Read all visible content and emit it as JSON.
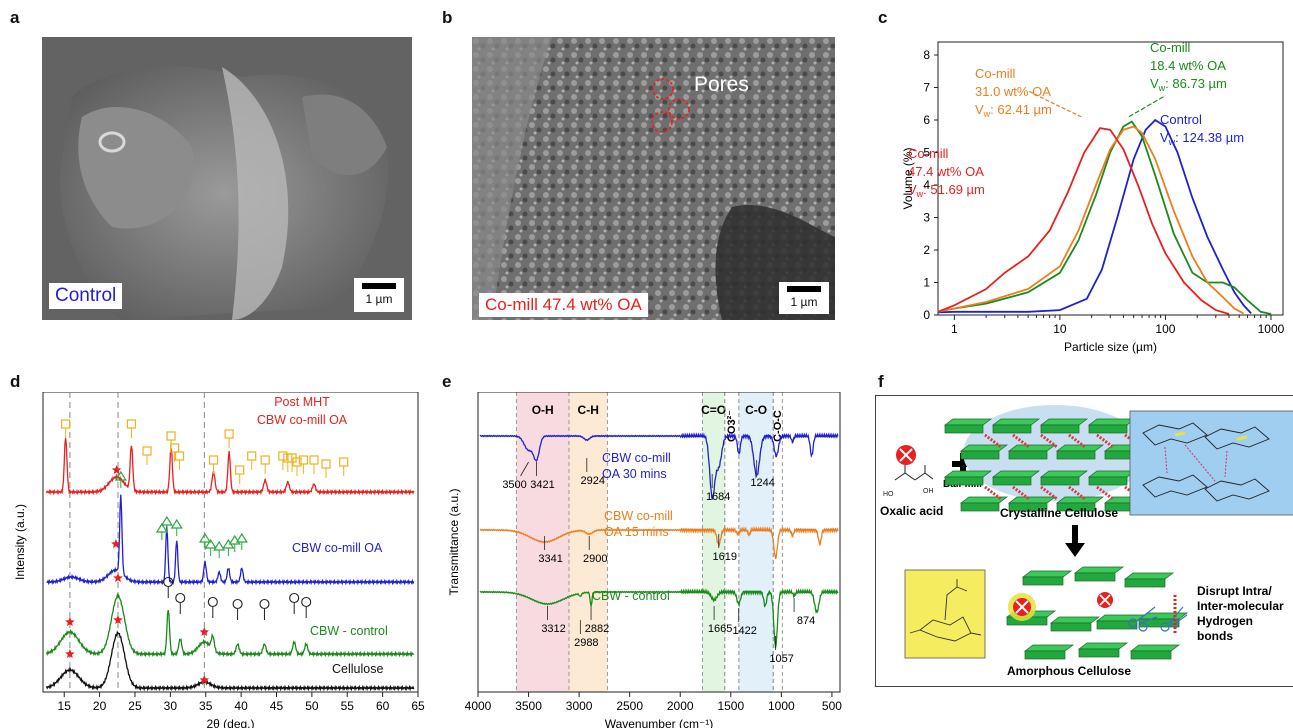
{
  "panels": {
    "a": {
      "letter": "a",
      "label": "Control",
      "scale_bar": "1 µm"
    },
    "b": {
      "letter": "b",
      "label": "Co-mill 47.4 wt% OA",
      "scale_bar": "1 µm",
      "annotation": "Pores"
    },
    "c": {
      "letter": "c"
    },
    "d": {
      "letter": "d"
    },
    "e": {
      "letter": "e"
    },
    "f": {
      "letter": "f",
      "oxalic_acid": "Oxalic acid",
      "ball_mill": "Ball-mill",
      "crystalline": "Crystalline Cellulose",
      "amorphous": "Amorphous Cellulose",
      "disrupt": [
        "Disrupt Intra/",
        "Inter-molecular",
        "Hydrogen",
        "bonds"
      ]
    }
  },
  "colors": {
    "control": "#1f1fd6",
    "oa18": "#1a8a1a",
    "oa31": "#ee7d1e",
    "oa47": "#e8201e",
    "black": "#111111"
  },
  "chart_data": [
    {
      "id": "c",
      "type": "line",
      "xlabel": "Particle size (µm)",
      "ylabel": "Volume (%)",
      "xscale": "log",
      "xlim": [
        0.7,
        1300
      ],
      "ylim": [
        0,
        8.4
      ],
      "x_ticks": [
        "1",
        "10",
        "100",
        "1000"
      ],
      "y_ticks": [
        "0",
        "1",
        "2",
        "3",
        "4",
        "5",
        "6",
        "7",
        "8"
      ],
      "series": [
        {
          "key": "control",
          "color": "#1f1fd6",
          "points": [
            [
              0.7,
              0.08
            ],
            [
              1,
              0.1
            ],
            [
              5,
              0.1
            ],
            [
              10,
              0.15
            ],
            [
              18,
              0.5
            ],
            [
              25,
              1.4
            ],
            [
              35,
              3.0
            ],
            [
              50,
              4.8
            ],
            [
              65,
              5.7
            ],
            [
              80,
              6.0
            ],
            [
              100,
              5.8
            ],
            [
              130,
              5.0
            ],
            [
              180,
              3.6
            ],
            [
              250,
              2.4
            ],
            [
              350,
              1.4
            ],
            [
              450,
              0.7
            ],
            [
              550,
              0.3
            ],
            [
              650,
              0.05
            ]
          ]
        },
        {
          "key": "oa18",
          "color": "#1a8a1a",
          "points": [
            [
              0.7,
              0.1
            ],
            [
              1,
              0.2
            ],
            [
              2,
              0.35
            ],
            [
              5,
              0.7
            ],
            [
              10,
              1.3
            ],
            [
              15,
              2.3
            ],
            [
              22,
              3.7
            ],
            [
              30,
              5.0
            ],
            [
              40,
              5.8
            ],
            [
              48,
              5.95
            ],
            [
              60,
              5.5
            ],
            [
              80,
              4.3
            ],
            [
              120,
              2.5
            ],
            [
              180,
              1.3
            ],
            [
              250,
              1.0
            ],
            [
              350,
              1.0
            ],
            [
              450,
              0.85
            ],
            [
              600,
              0.45
            ],
            [
              800,
              0.1
            ],
            [
              1000,
              0.03
            ]
          ]
        },
        {
          "key": "oa31",
          "color": "#ee7d1e",
          "points": [
            [
              0.7,
              0.1
            ],
            [
              1,
              0.2
            ],
            [
              2,
              0.4
            ],
            [
              5,
              0.8
            ],
            [
              10,
              1.5
            ],
            [
              15,
              2.6
            ],
            [
              22,
              4.0
            ],
            [
              30,
              5.1
            ],
            [
              40,
              5.7
            ],
            [
              50,
              5.8
            ],
            [
              60,
              5.6
            ],
            [
              80,
              4.8
            ],
            [
              120,
              3.2
            ],
            [
              180,
              1.8
            ],
            [
              250,
              1.0
            ],
            [
              350,
              0.55
            ],
            [
              450,
              0.2
            ],
            [
              550,
              0.05
            ]
          ]
        },
        {
          "key": "oa47",
          "color": "#e8201e",
          "points": [
            [
              0.7,
              0.1
            ],
            [
              1,
              0.3
            ],
            [
              2,
              0.8
            ],
            [
              3,
              1.3
            ],
            [
              5,
              1.8
            ],
            [
              8,
              2.6
            ],
            [
              12,
              3.8
            ],
            [
              17,
              5.0
            ],
            [
              24,
              5.75
            ],
            [
              30,
              5.7
            ],
            [
              40,
              5.1
            ],
            [
              55,
              4.0
            ],
            [
              75,
              2.8
            ],
            [
              100,
              1.9
            ],
            [
              150,
              1.0
            ],
            [
              220,
              0.45
            ],
            [
              300,
              0.15
            ],
            [
              400,
              0.03
            ]
          ]
        }
      ],
      "annotations": [
        {
          "series": "oa31",
          "lines": [
            "Co-mill",
            "31.0 wt% OA",
            "Vw: 62.41 µm"
          ]
        },
        {
          "series": "oa18",
          "lines": [
            "Co-mill",
            "18.4 wt% OA",
            "Vw: 86.73 µm"
          ]
        },
        {
          "series": "control",
          "lines": [
            "Control",
            "Vw: 124.38 µm"
          ]
        },
        {
          "series": "oa47",
          "lines": [
            "Co-mill",
            "47.4 wt% OA",
            "Vw: 51.69 µm"
          ]
        }
      ]
    },
    {
      "id": "d",
      "type": "line",
      "xlabel": "2θ (deg.)",
      "ylabel": "Intensity (a.u.)",
      "xlim": [
        12,
        65
      ],
      "x_ticks": [
        "15",
        "20",
        "25",
        "30",
        "35",
        "40",
        "45",
        "50",
        "55",
        "60",
        "65"
      ],
      "dashed_lines_x": [
        15.8,
        22.6,
        34.8
      ],
      "series": [
        {
          "name": "Post MHT\nCBW co-mill OA",
          "color": "#e8201e",
          "offset": 3.0
        },
        {
          "name": "CBW co-mill OA",
          "color": "#1f1fd6",
          "offset": 2.0
        },
        {
          "name": "CBW - control",
          "color": "#1a8a1a",
          "offset": 1.0
        },
        {
          "name": "Cellulose",
          "color": "#111111",
          "offset": 0.0
        }
      ],
      "markers": {
        "square_x": [
          15.2,
          24.5,
          26.7,
          30.1,
          30.6,
          31.3,
          36.1,
          38.3,
          39.8,
          41.5,
          43.4,
          45.9,
          46.6,
          47.2,
          47.9,
          48.8,
          50.3,
          52.0,
          54.5
        ],
        "triangle_x": [
          23.0,
          28.8,
          29.5,
          30.9,
          34.9,
          35.7,
          36.9,
          38.2,
          39.1,
          40.1
        ],
        "circle_x": [
          29.7,
          31.4,
          36.0,
          39.5,
          43.3,
          47.5,
          49.2
        ],
        "star_positions": [
          [
            22.4,
            3
          ],
          [
            22.3,
            2
          ],
          [
            22.6,
            1
          ],
          [
            15.8,
            1
          ],
          [
            34.8,
            1
          ],
          [
            15.8,
            0
          ],
          [
            22.6,
            0
          ],
          [
            34.8,
            0
          ]
        ]
      }
    },
    {
      "id": "e",
      "type": "line",
      "xlabel": "Wavenumber (cm⁻¹)",
      "ylabel": "Transmittance (a.u.)",
      "xlim": [
        4000,
        420
      ],
      "x_ticks": [
        "4000",
        "3500",
        "3000",
        "2500",
        "2000",
        "1500",
        "1000",
        "500"
      ],
      "bands": [
        {
          "label": "O-H",
          "from": 3620,
          "to": 3100,
          "color": "#f6cfd6"
        },
        {
          "label": "C-H",
          "from": 3100,
          "to": 2720,
          "color": "#fbe3c7"
        },
        {
          "label": "C=O",
          "from": 1780,
          "to": 1560,
          "color": "#d8f1d6"
        },
        {
          "label": "CO3²⁻",
          "from": 1560,
          "to": 1420,
          "color": "#ffffff"
        },
        {
          "label": "C-O",
          "from": 1420,
          "to": 1080,
          "color": "#d8ecf7"
        },
        {
          "label": "C-O-C",
          "from": 1080,
          "to": 990,
          "color": "#ffffff"
        }
      ],
      "series": [
        {
          "name": "CBW co-mill\nOA 30 mins",
          "color": "#1f1fd6",
          "offset": 2.0
        },
        {
          "name": "CBW co-mill\nOA 15 mins",
          "color": "#ee7d1e",
          "offset": 1.0
        },
        {
          "name": "CBW - control",
          "color": "#1a8a1a",
          "offset": 0.0
        }
      ],
      "peak_labels": [
        {
          "text": "3500",
          "x": 3500,
          "row": 2
        },
        {
          "text": "3421",
          "x": 3421,
          "row": 2
        },
        {
          "text": "2924",
          "x": 2924,
          "row": 2
        },
        {
          "text": "1684",
          "x": 1684,
          "row": 2
        },
        {
          "text": "1244",
          "x": 1244,
          "row": 2
        },
        {
          "text": "3341",
          "x": 3341,
          "row": 1
        },
        {
          "text": "2900",
          "x": 2900,
          "row": 1
        },
        {
          "text": "1619",
          "x": 1619,
          "row": 1
        },
        {
          "text": "3312",
          "x": 3312,
          "row": 0
        },
        {
          "text": "2988",
          "x": 2988,
          "row": 0
        },
        {
          "text": "2882",
          "x": 2882,
          "row": 0
        },
        {
          "text": "1665",
          "x": 1665,
          "row": 0
        },
        {
          "text": "1422",
          "x": 1422,
          "row": 0
        },
        {
          "text": "1057",
          "x": 1057,
          "row": 0
        },
        {
          "text": "874",
          "x": 874,
          "row": 0
        }
      ]
    }
  ]
}
